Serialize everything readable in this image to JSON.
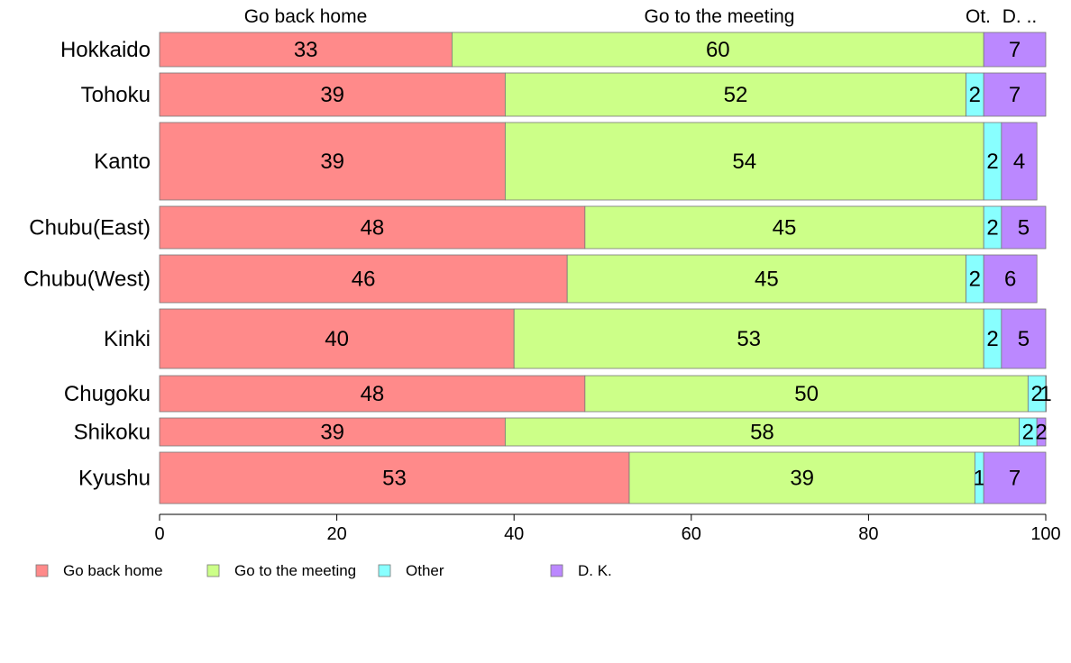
{
  "chart_data": {
    "type": "bar",
    "orientation": "horizontal",
    "stacked": true,
    "categories": [
      "Hokkaido",
      "Tohoku",
      "Kanto",
      "Chubu(East)",
      "Chubu(West)",
      "Kinki",
      "Chugoku",
      "Shikoku",
      "Kyushu"
    ],
    "series": [
      {
        "name": "Go back home",
        "color": "#ff8a8a",
        "values": [
          33,
          39,
          39,
          48,
          46,
          40,
          48,
          39,
          53
        ]
      },
      {
        "name": "Go to the meeting",
        "color": "#ccff88",
        "values": [
          60,
          52,
          54,
          45,
          45,
          53,
          50,
          58,
          39
        ]
      },
      {
        "name": "Other",
        "color": "#88ffff",
        "values": [
          0,
          2,
          2,
          2,
          2,
          2,
          2,
          2,
          1
        ]
      },
      {
        "name": "D. K.",
        "color": "#bb88ff",
        "values": [
          7,
          7,
          4,
          5,
          6,
          5,
          1,
          2,
          7
        ]
      }
    ],
    "column_headers": [
      "Go back home",
      "Go to the meeting",
      "Ot.",
      "D. .."
    ],
    "xlim": [
      0,
      100
    ],
    "xticks": [
      0,
      20,
      40,
      60,
      80,
      100
    ],
    "legend_position": "bottom",
    "title": "",
    "xlabel": "",
    "ylabel": ""
  }
}
